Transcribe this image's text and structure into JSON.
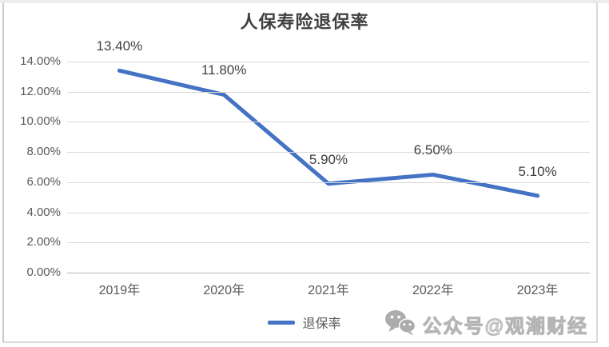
{
  "chart_data": {
    "type": "line",
    "title": "人保寿险退保率",
    "categories": [
      "2019年",
      "2020年",
      "2021年",
      "2022年",
      "2023年"
    ],
    "series": [
      {
        "name": "退保率",
        "values": [
          13.4,
          11.8,
          5.9,
          6.5,
          5.1
        ]
      }
    ],
    "data_labels": [
      "13.40%",
      "11.80%",
      "5.90%",
      "6.50%",
      "5.10%"
    ],
    "y_ticks": [
      {
        "value": 0,
        "label": "0.00%"
      },
      {
        "value": 2,
        "label": "2.00%"
      },
      {
        "value": 4,
        "label": "4.00%"
      },
      {
        "value": 6,
        "label": "6.00%"
      },
      {
        "value": 8,
        "label": "8.00%"
      },
      {
        "value": 10,
        "label": "10.00%"
      },
      {
        "value": 12,
        "label": "12.00%"
      },
      {
        "value": 14,
        "label": "14.00%"
      }
    ],
    "ylim": [
      0,
      14
    ],
    "xlabel": "",
    "ylabel": "",
    "grid": true,
    "legend_position": "bottom",
    "line_color": "#4472C4",
    "grid_color": "#d9d9d9",
    "axis_color": "#b3b3b3",
    "tick_text_color": "#595959",
    "data_label_color": "#404040"
  },
  "watermark": {
    "icon": "wechat-icon",
    "text": "公众号@观潮财经"
  }
}
